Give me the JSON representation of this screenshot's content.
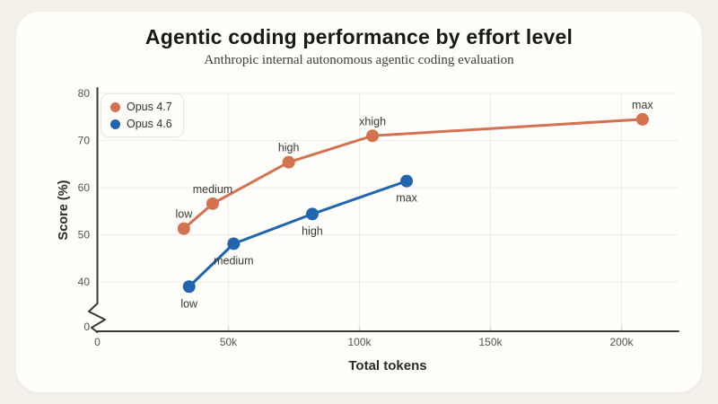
{
  "chart_data": {
    "type": "line",
    "title": "Agentic coding performance by effort level",
    "subtitle": "Anthropic internal autonomous agentic coding evaluation",
    "xlabel": "Total tokens",
    "ylabel": "Score (%)",
    "grid": true,
    "legend_position": "top-left",
    "xlim_tokens_k": [
      0,
      222
    ],
    "ylim": [
      0,
      80
    ],
    "y_axis_break": true,
    "y_break_label": "0",
    "x_ticks": [
      {
        "v": 0,
        "label": "0"
      },
      {
        "v": 50,
        "label": "50k"
      },
      {
        "v": 100,
        "label": "100k"
      },
      {
        "v": 150,
        "label": "150k"
      },
      {
        "v": 200,
        "label": "200k"
      }
    ],
    "y_ticks": [
      {
        "v": 80,
        "label": "80"
      },
      {
        "v": 70,
        "label": "70"
      },
      {
        "v": 60,
        "label": "60"
      },
      {
        "v": 50,
        "label": "50"
      },
      {
        "v": 40,
        "label": "40"
      }
    ],
    "series": [
      {
        "name": "Opus 4.7",
        "color": "#d4714e",
        "label_side": "above",
        "points": [
          {
            "label": "low",
            "tokens_k": 33,
            "score": 51.3
          },
          {
            "label": "medium",
            "tokens_k": 44,
            "score": 56.6
          },
          {
            "label": "high",
            "tokens_k": 73,
            "score": 65.4
          },
          {
            "label": "xhigh",
            "tokens_k": 105,
            "score": 71.0
          },
          {
            "label": "max",
            "tokens_k": 208,
            "score": 74.5
          }
        ]
      },
      {
        "name": "Opus 4.6",
        "color": "#2065ae",
        "label_side": "below",
        "points": [
          {
            "label": "low",
            "tokens_k": 35,
            "score": 39.0
          },
          {
            "label": "medium",
            "tokens_k": 52,
            "score": 48.1
          },
          {
            "label": "high",
            "tokens_k": 82,
            "score": 54.4
          },
          {
            "label": "max",
            "tokens_k": 118,
            "score": 61.4
          }
        ]
      }
    ],
    "colors": {
      "page_background": "#f3f1ea",
      "card_background": "#fffefb",
      "gridline": "#ececec",
      "axis": "#3b3832"
    }
  }
}
